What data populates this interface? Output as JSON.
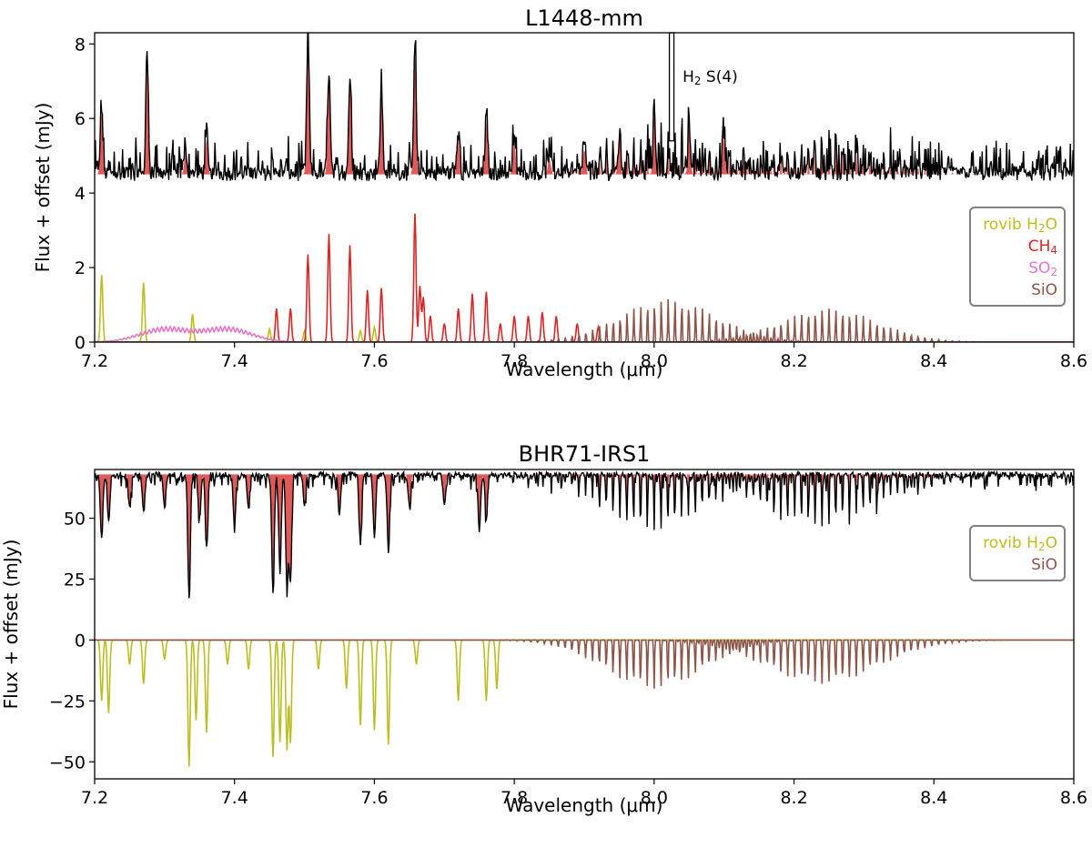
{
  "colors": {
    "model_fill": "#e05a5a",
    "observed": "#000000",
    "h2o": "#bcbd22",
    "ch4": "#d62728",
    "so2": "#e377c2",
    "sio": "#8c564b",
    "legend_border": "#808080"
  },
  "chart_data": [
    {
      "type": "line",
      "title": "L1448-mm",
      "xlabel": "Wavelength (μm)",
      "ylabel": "Flux + offset (mJy)",
      "xlim": [
        7.2,
        8.6
      ],
      "ylim": [
        0,
        8.3
      ],
      "xticks": [
        7.2,
        7.4,
        7.6,
        7.8,
        8.0,
        8.2,
        8.4,
        8.6
      ],
      "xtick_labels": [
        "7.2",
        "7.4",
        "7.6",
        "7.8",
        "8.0",
        "8.2",
        "8.4",
        "8.6"
      ],
      "yticks": [
        0,
        2,
        4,
        6,
        8
      ],
      "ytick_labels": [
        "0",
        "2",
        "4",
        "6",
        "8"
      ],
      "annotation": {
        "base": "H",
        "sub": "2",
        "rest": " S(4)",
        "x": 8.025
      },
      "legend": {
        "placement": "right",
        "entries": [
          {
            "base": "rovib H",
            "sub": "2",
            "rest": "O",
            "color": "h2o"
          },
          {
            "base": "CH",
            "sub": "4",
            "rest": "",
            "color": "ch4"
          },
          {
            "base": "SO",
            "sub": "2",
            "rest": "",
            "color": "so2"
          },
          {
            "base": "SiO",
            "sub": "",
            "rest": "",
            "color": "sio"
          }
        ]
      },
      "observed": {
        "baseline": 4.5,
        "peaks": [
          [
            7.21,
            6.3
          ],
          [
            7.275,
            7.7
          ],
          [
            7.33,
            5.2
          ],
          [
            7.36,
            5.5
          ],
          [
            7.505,
            8.1
          ],
          [
            7.535,
            7.3
          ],
          [
            7.565,
            7.1
          ],
          [
            7.61,
            6.8
          ],
          [
            7.658,
            7.9
          ],
          [
            7.72,
            5.6
          ],
          [
            7.76,
            6.0
          ],
          [
            7.8,
            5.5
          ],
          [
            7.85,
            5.0
          ],
          [
            7.9,
            5.2
          ],
          [
            7.95,
            5.3
          ],
          [
            8.0,
            5.6
          ],
          [
            8.05,
            5.5
          ],
          [
            8.1,
            5.4
          ]
        ],
        "sio_band_peak": 5.6
      },
      "series": [
        {
          "name": "rovib H2O",
          "color": "h2o",
          "lines": [
            [
              7.21,
              1.8
            ],
            [
              7.27,
              1.6
            ],
            [
              7.34,
              0.75
            ],
            [
              7.45,
              0.35
            ],
            [
              7.5,
              0.3
            ],
            [
              7.58,
              0.3
            ],
            [
              7.6,
              0.4
            ]
          ]
        },
        {
          "name": "CH4",
          "color": "ch4",
          "lines": [
            [
              7.46,
              0.9
            ],
            [
              7.48,
              0.9
            ],
            [
              7.505,
              2.35
            ],
            [
              7.535,
              2.9
            ],
            [
              7.565,
              2.6
            ],
            [
              7.59,
              1.4
            ],
            [
              7.61,
              1.45
            ],
            [
              7.658,
              3.45
            ],
            [
              7.665,
              1.5
            ],
            [
              7.67,
              1.2
            ],
            [
              7.68,
              0.7
            ],
            [
              7.7,
              0.5
            ],
            [
              7.72,
              0.9
            ],
            [
              7.74,
              1.3
            ],
            [
              7.76,
              1.35
            ],
            [
              7.78,
              0.5
            ],
            [
              7.8,
              0.7
            ],
            [
              7.82,
              0.7
            ],
            [
              7.84,
              0.8
            ],
            [
              7.86,
              0.7
            ],
            [
              7.89,
              0.5
            ],
            [
              7.92,
              0.4
            ]
          ]
        },
        {
          "name": "SO2",
          "color": "so2",
          "bands": [
            [
              7.3,
              0.4,
              0.035
            ],
            [
              7.39,
              0.4,
              0.035
            ]
          ]
        },
        {
          "name": "SiO",
          "color": "sio",
          "bands": [
            [
              8.02,
              1.15,
              0.07
            ],
            [
              8.25,
              0.9,
              0.07
            ]
          ]
        }
      ]
    },
    {
      "type": "line",
      "title": "BHR71-IRS1",
      "xlabel": "Wavelength (μm)",
      "ylabel": "Flux + offset (mJy)",
      "xlim": [
        7.2,
        8.6
      ],
      "ylim": [
        -57,
        70
      ],
      "xticks": [
        7.2,
        7.4,
        7.6,
        7.8,
        8.0,
        8.2,
        8.4,
        8.6
      ],
      "xtick_labels": [
        "7.2",
        "7.4",
        "7.6",
        "7.8",
        "8.0",
        "8.2",
        "8.4",
        "8.6"
      ],
      "yticks": [
        -50,
        -25,
        0,
        25,
        50
      ],
      "ytick_labels": [
        "−50",
        "−25",
        "0",
        "25",
        "50"
      ],
      "legend": {
        "placement": "right",
        "entries": [
          {
            "base": "rovib H",
            "sub": "2",
            "rest": "O",
            "color": "h2o"
          },
          {
            "base": "SiO",
            "sub": "",
            "rest": "",
            "color": "sio"
          }
        ]
      },
      "observed": {
        "baseline": 68,
        "dips": [
          [
            7.21,
            42
          ],
          [
            7.22,
            48
          ],
          [
            7.25,
            55
          ],
          [
            7.27,
            52
          ],
          [
            7.3,
            55
          ],
          [
            7.335,
            18
          ],
          [
            7.35,
            50
          ],
          [
            7.36,
            38
          ],
          [
            7.4,
            48
          ],
          [
            7.42,
            54
          ],
          [
            7.455,
            20
          ],
          [
            7.465,
            28
          ],
          [
            7.475,
            22
          ],
          [
            7.48,
            25
          ],
          [
            7.5,
            55
          ],
          [
            7.55,
            52
          ],
          [
            7.58,
            40
          ],
          [
            7.6,
            42
          ],
          [
            7.62,
            38
          ],
          [
            7.65,
            55
          ],
          [
            7.7,
            56
          ],
          [
            7.75,
            45
          ],
          [
            7.76,
            50
          ]
        ],
        "sio_band_depth": 22
      },
      "series": [
        {
          "name": "rovib H2O",
          "color": "h2o",
          "lines": [
            [
              7.21,
              -25
            ],
            [
              7.22,
              -30
            ],
            [
              7.25,
              -10
            ],
            [
              7.27,
              -18
            ],
            [
              7.3,
              -8
            ],
            [
              7.335,
              -52
            ],
            [
              7.345,
              -33
            ],
            [
              7.36,
              -38
            ],
            [
              7.39,
              -10
            ],
            [
              7.42,
              -12
            ],
            [
              7.455,
              -48
            ],
            [
              7.465,
              -42
            ],
            [
              7.475,
              -45
            ],
            [
              7.48,
              -42
            ],
            [
              7.52,
              -12
            ],
            [
              7.56,
              -20
            ],
            [
              7.58,
              -35
            ],
            [
              7.6,
              -37
            ],
            [
              7.62,
              -43
            ],
            [
              7.66,
              -10
            ],
            [
              7.72,
              -25
            ],
            [
              7.76,
              -25
            ],
            [
              7.775,
              -20
            ]
          ]
        },
        {
          "name": "SiO",
          "color": "sio",
          "bands": [
            [
              8.0,
              -20,
              0.07
            ],
            [
              8.24,
              -18,
              0.08
            ]
          ]
        }
      ]
    }
  ]
}
